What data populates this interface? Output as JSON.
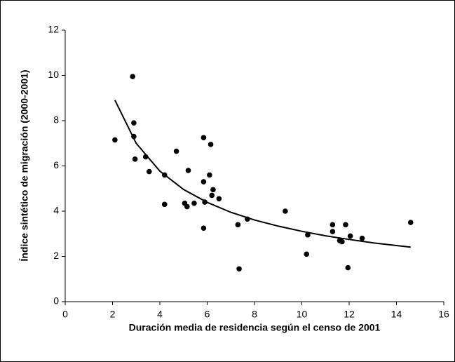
{
  "chart_data": {
    "type": "scatter",
    "xlabel": "Duración media de residencia según el censo de 2001",
    "ylabel": "Índice sintético de migración (2000-2001)",
    "xlim": [
      0,
      16
    ],
    "xticks": [
      0,
      2,
      4,
      6,
      8,
      10,
      12,
      14,
      16
    ],
    "ylim": [
      0,
      12
    ],
    "yticks": [
      0,
      2,
      4,
      6,
      8,
      10,
      12
    ],
    "grid": false,
    "series": [
      {
        "mode": "markers",
        "color": "#000000",
        "x": [
          2.1,
          2.85,
          2.9,
          2.9,
          2.95,
          3.4,
          3.55,
          4.2,
          4.2,
          4.7,
          5.05,
          5.15,
          5.2,
          5.45,
          5.85,
          5.85,
          5.85,
          5.9,
          6.1,
          6.15,
          6.2,
          6.25,
          6.5,
          7.3,
          7.35,
          7.7,
          9.3,
          10.2,
          10.25,
          11.3,
          11.3,
          11.6,
          11.7,
          11.85,
          11.95,
          12.05,
          12.55,
          14.6
        ],
        "values": [
          7.15,
          9.95,
          7.9,
          7.3,
          6.3,
          6.4,
          5.75,
          5.6,
          4.3,
          6.65,
          4.35,
          4.2,
          5.8,
          4.35,
          7.25,
          5.3,
          3.25,
          4.4,
          5.6,
          6.95,
          4.7,
          4.95,
          4.55,
          3.4,
          1.45,
          3.65,
          4.0,
          2.1,
          2.95,
          3.4,
          3.1,
          2.7,
          2.65,
          3.4,
          1.5,
          2.9,
          2.8,
          3.5
        ]
      },
      {
        "mode": "line",
        "color": "#000000",
        "x": [
          2.1,
          3,
          4,
          5,
          6,
          7,
          8,
          9,
          10,
          11,
          12,
          13,
          14,
          14.6
        ],
        "values": [
          8.91,
          7.0,
          5.77,
          4.96,
          4.39,
          3.95,
          3.61,
          3.34,
          3.11,
          2.91,
          2.75,
          2.6,
          2.48,
          2.41
        ]
      }
    ]
  }
}
